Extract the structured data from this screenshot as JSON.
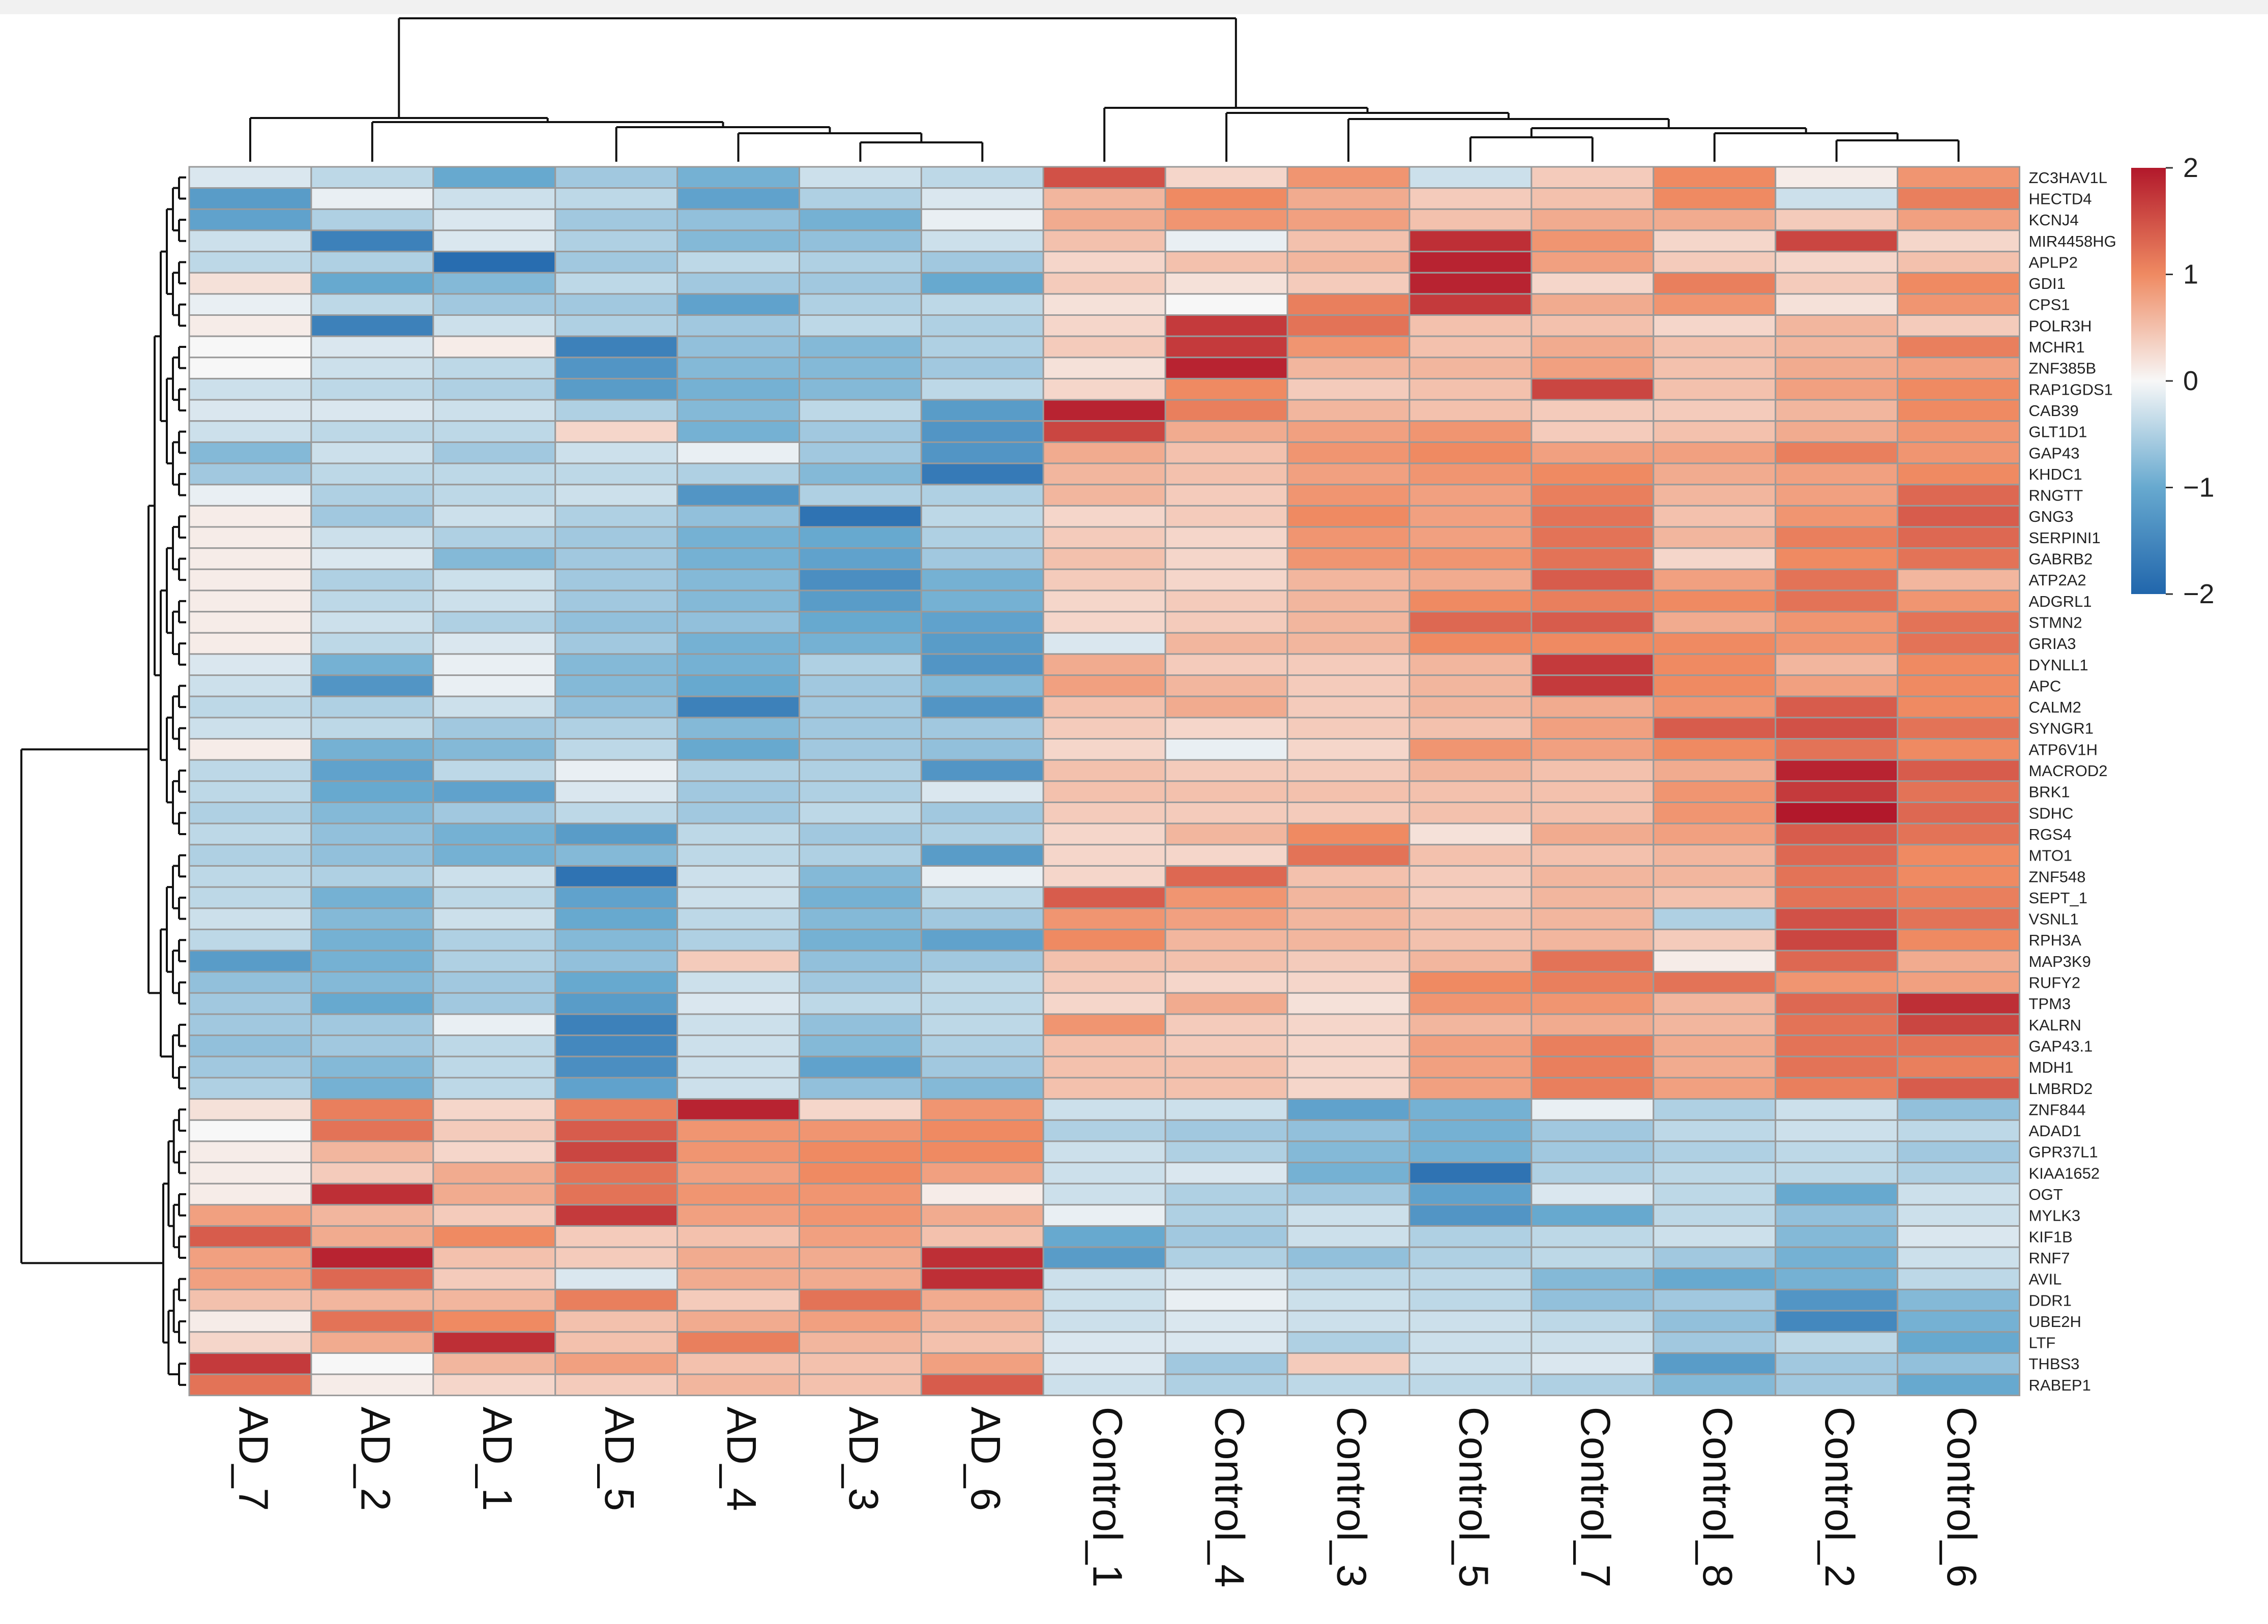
{
  "chart_data": {
    "type": "heatmap",
    "title": "",
    "xlabel": "",
    "ylabel": "",
    "columns": [
      "AD_7",
      "AD_2",
      "AD_1",
      "AD_5",
      "AD_4",
      "AD_3",
      "AD_6",
      "Control_1",
      "Control_4",
      "Control_3",
      "Control_5",
      "Control_7",
      "Control_8",
      "Control_2",
      "Control_6"
    ],
    "rows": [
      "ZC3HAV1L",
      "HECTD4",
      "KCNJ4",
      "MIR4458HG",
      "APLP2",
      "GDI1",
      "CPS1",
      "POLR3H",
      "MCHR1",
      "ZNF385B",
      "RAP1GDS1",
      "CAB39",
      "GLT1D1",
      "GAP43",
      "KHDC1",
      "RNGTT",
      "GNG3",
      "SERPINI1",
      "GABRB2",
      "ATP2A2",
      "ADGRL1",
      "STMN2",
      "GRIA3",
      "DYNLL1",
      "APC",
      "CALM2",
      "SYNGR1",
      "ATP6V1H",
      "MACROD2",
      "BRK1",
      "SDHC",
      "RGS4",
      "MTO1",
      "ZNF548",
      "SEPT_1",
      "VSNL1",
      "RPH3A",
      "MAP3K9",
      "RUFY2",
      "TPM3",
      "KALRN",
      "GAP43.1",
      "MDH1",
      "LMBRD2",
      "ZNF844",
      "ADAD1",
      "GPR37L1",
      "KIAA1652",
      "OGT",
      "MYLK3",
      "KIF1B",
      "RNF7",
      "AVIL",
      "DDR1",
      "UBE2H",
      "LTF",
      "THBS3",
      "RABEP1"
    ],
    "values": [
      [
        -0.2,
        -0.4,
        -1.0,
        -0.6,
        -0.9,
        -0.3,
        -0.4,
        1.5,
        0.3,
        0.9,
        -0.3,
        0.4,
        1.0,
        0.1,
        0.9
      ],
      [
        -1.2,
        -0.1,
        -0.3,
        -0.4,
        -1.1,
        -0.5,
        -0.2,
        0.6,
        1.0,
        0.7,
        0.4,
        0.5,
        1.0,
        -0.3,
        1.1
      ],
      [
        -1.1,
        -0.5,
        -0.2,
        -0.6,
        -0.7,
        -0.9,
        -0.1,
        0.7,
        0.9,
        0.8,
        0.5,
        0.7,
        0.7,
        0.4,
        0.8
      ],
      [
        -0.3,
        -1.6,
        -0.2,
        -0.5,
        -0.8,
        -0.7,
        -0.3,
        0.5,
        -0.1,
        0.5,
        1.8,
        0.9,
        0.3,
        1.6,
        0.3
      ],
      [
        -0.4,
        -0.5,
        -1.9,
        -0.6,
        -0.4,
        -0.5,
        -0.6,
        0.3,
        0.5,
        0.6,
        1.9,
        0.8,
        0.4,
        0.3,
        0.5
      ],
      [
        0.2,
        -1.0,
        -0.8,
        -0.4,
        -0.6,
        -0.6,
        -1.0,
        0.4,
        0.2,
        0.4,
        1.9,
        0.3,
        1.1,
        0.4,
        1.0
      ],
      [
        -0.1,
        -0.4,
        -0.6,
        -0.6,
        -1.1,
        -0.5,
        -0.4,
        0.2,
        0.0,
        1.1,
        1.7,
        0.7,
        0.9,
        0.2,
        0.9
      ],
      [
        0.1,
        -1.6,
        -0.3,
        -0.5,
        -0.6,
        -0.4,
        -0.5,
        0.3,
        1.7,
        1.2,
        0.5,
        0.5,
        0.3,
        0.6,
        0.4
      ],
      [
        0.0,
        -0.2,
        0.1,
        -1.6,
        -0.7,
        -0.8,
        -0.5,
        0.4,
        1.7,
        0.9,
        0.5,
        0.7,
        0.5,
        0.6,
        1.1
      ],
      [
        0.0,
        -0.3,
        -0.4,
        -1.3,
        -0.8,
        -0.8,
        -0.6,
        0.2,
        1.9,
        0.6,
        0.6,
        0.8,
        0.5,
        0.7,
        0.8
      ],
      [
        -0.3,
        -0.4,
        -0.5,
        -1.2,
        -0.9,
        -0.8,
        -0.4,
        0.3,
        1.0,
        0.4,
        0.5,
        1.6,
        0.5,
        0.8,
        1.0
      ],
      [
        -0.2,
        -0.2,
        -0.3,
        -0.5,
        -0.8,
        -0.4,
        -1.2,
        1.9,
        1.1,
        0.6,
        0.5,
        0.4,
        0.4,
        0.6,
        1.0
      ],
      [
        -0.3,
        -0.4,
        -0.4,
        0.3,
        -0.9,
        -0.6,
        -1.3,
        1.6,
        0.7,
        0.8,
        0.9,
        0.4,
        0.5,
        0.7,
        0.9
      ],
      [
        -0.8,
        -0.3,
        -0.6,
        -0.3,
        -0.1,
        -0.6,
        -1.3,
        0.7,
        0.5,
        0.9,
        1.0,
        0.8,
        0.8,
        1.1,
        0.9
      ],
      [
        -0.6,
        -0.4,
        -0.4,
        -0.4,
        -0.5,
        -0.8,
        -1.7,
        0.6,
        0.5,
        0.8,
        0.9,
        1.0,
        0.7,
        0.8,
        1.0
      ],
      [
        -0.1,
        -0.5,
        -0.4,
        -0.3,
        -1.3,
        -0.5,
        -0.5,
        0.6,
        0.4,
        0.9,
        0.8,
        1.1,
        0.6,
        0.8,
        1.3
      ],
      [
        0.1,
        -0.6,
        -0.3,
        -0.5,
        -0.7,
        -1.8,
        -0.4,
        0.3,
        0.4,
        1.0,
        0.8,
        1.2,
        0.5,
        0.9,
        1.4
      ],
      [
        0.1,
        -0.3,
        -0.5,
        -0.6,
        -0.9,
        -1.0,
        -0.5,
        0.4,
        0.3,
        0.9,
        0.8,
        1.2,
        0.6,
        1.1,
        1.3
      ],
      [
        0.1,
        -0.2,
        -0.8,
        -0.6,
        -0.9,
        -1.1,
        -0.6,
        0.5,
        0.3,
        0.9,
        0.9,
        1.2,
        0.3,
        1.0,
        1.2
      ],
      [
        0.1,
        -0.5,
        -0.3,
        -0.6,
        -0.8,
        -1.4,
        -0.9,
        0.4,
        0.3,
        0.6,
        0.7,
        1.4,
        0.8,
        1.2,
        0.6
      ],
      [
        0.1,
        -0.4,
        -0.3,
        -0.6,
        -0.8,
        -1.2,
        -0.9,
        0.3,
        0.4,
        0.6,
        1.0,
        1.1,
        1.0,
        1.2,
        0.9
      ],
      [
        0.1,
        -0.3,
        -0.5,
        -0.7,
        -0.7,
        -1.0,
        -1.1,
        0.3,
        0.4,
        0.6,
        1.3,
        1.4,
        0.7,
        0.9,
        1.2
      ],
      [
        0.1,
        -0.4,
        -0.2,
        -0.6,
        -0.9,
        -0.9,
        -1.2,
        -0.2,
        0.6,
        0.6,
        1.0,
        1.0,
        1.0,
        0.9,
        1.2
      ],
      [
        -0.2,
        -0.9,
        -0.1,
        -0.8,
        -0.9,
        -0.5,
        -1.3,
        0.7,
        0.4,
        0.4,
        0.6,
        1.7,
        1.0,
        0.6,
        1.0
      ],
      [
        -0.3,
        -1.3,
        -0.1,
        -0.8,
        -1.0,
        -0.6,
        -0.8,
        0.8,
        0.6,
        0.4,
        0.6,
        1.7,
        1.0,
        0.8,
        1.0
      ],
      [
        -0.4,
        -0.5,
        -0.3,
        -0.7,
        -1.6,
        -0.6,
        -1.3,
        0.5,
        0.7,
        0.4,
        0.6,
        0.7,
        0.9,
        1.4,
        1.0
      ],
      [
        -0.3,
        -0.4,
        -0.6,
        -0.5,
        -0.8,
        -0.6,
        -0.6,
        0.4,
        0.3,
        0.4,
        0.5,
        0.8,
        1.4,
        1.5,
        1.2
      ],
      [
        0.1,
        -0.9,
        -0.8,
        -0.4,
        -1.0,
        -0.6,
        -0.7,
        0.3,
        -0.1,
        0.3,
        0.9,
        0.8,
        1.0,
        1.2,
        1.0
      ],
      [
        -0.4,
        -1.1,
        -0.4,
        -0.1,
        -0.5,
        -0.5,
        -1.3,
        0.5,
        0.4,
        0.4,
        0.6,
        0.5,
        0.7,
        1.9,
        1.4
      ],
      [
        -0.4,
        -1.0,
        -1.1,
        -0.2,
        -0.6,
        -0.5,
        -0.2,
        0.5,
        0.5,
        0.5,
        0.5,
        0.5,
        0.9,
        1.7,
        1.2
      ],
      [
        -0.5,
        -0.8,
        -0.6,
        -0.4,
        -0.6,
        -0.4,
        -0.6,
        0.4,
        0.4,
        0.4,
        0.5,
        0.5,
        0.9,
        2.0,
        1.3
      ],
      [
        -0.4,
        -0.7,
        -0.9,
        -1.2,
        -0.4,
        -0.6,
        -0.5,
        0.3,
        0.6,
        1.0,
        0.2,
        0.7,
        0.8,
        1.4,
        1.2
      ],
      [
        -0.5,
        -0.7,
        -0.9,
        -0.8,
        -0.4,
        -0.5,
        -1.2,
        0.3,
        0.3,
        1.2,
        0.5,
        0.5,
        0.6,
        1.3,
        1.0
      ],
      [
        -0.4,
        -0.5,
        -0.3,
        -1.8,
        -0.3,
        -0.8,
        -0.1,
        0.3,
        1.3,
        0.5,
        0.4,
        0.6,
        0.6,
        1.2,
        1.0
      ],
      [
        -0.4,
        -0.9,
        -0.4,
        -1.1,
        -0.3,
        -0.9,
        -0.4,
        1.4,
        0.9,
        0.6,
        0.4,
        0.6,
        0.5,
        1.2,
        1.1
      ],
      [
        -0.3,
        -0.8,
        -0.3,
        -1.0,
        -0.4,
        -0.8,
        -0.6,
        0.9,
        0.8,
        0.6,
        0.5,
        0.6,
        -0.5,
        1.5,
        1.2
      ],
      [
        -0.4,
        -0.9,
        -0.5,
        -0.8,
        -0.5,
        -0.9,
        -1.1,
        1.0,
        0.6,
        0.6,
        0.5,
        0.6,
        0.4,
        1.6,
        1.0
      ],
      [
        -1.2,
        -0.9,
        -0.5,
        -0.7,
        0.4,
        -0.7,
        -0.6,
        0.5,
        0.5,
        0.4,
        0.6,
        1.2,
        0.1,
        1.3,
        0.7
      ],
      [
        -0.7,
        -0.8,
        -0.6,
        -1.0,
        -0.3,
        -0.6,
        -0.4,
        0.4,
        0.3,
        0.3,
        1.0,
        1.1,
        1.2,
        0.9,
        0.8
      ],
      [
        -0.6,
        -1.0,
        -0.6,
        -1.2,
        -0.2,
        -0.4,
        -0.4,
        0.3,
        0.7,
        0.2,
        0.9,
        0.9,
        0.6,
        1.3,
        1.8
      ],
      [
        -0.6,
        -0.6,
        -0.1,
        -1.6,
        -0.3,
        -0.7,
        -0.4,
        0.9,
        0.4,
        0.3,
        0.6,
        0.7,
        0.6,
        1.2,
        1.6
      ],
      [
        -0.7,
        -0.6,
        -0.4,
        -1.5,
        -0.3,
        -0.8,
        -0.5,
        0.5,
        0.4,
        0.3,
        0.8,
        1.1,
        0.7,
        1.2,
        1.2
      ],
      [
        -0.6,
        -0.8,
        -0.4,
        -1.4,
        -0.3,
        -1.1,
        -0.6,
        0.5,
        0.5,
        0.3,
        0.8,
        1.1,
        0.7,
        1.2,
        1.1
      ],
      [
        -0.5,
        -0.9,
        -0.4,
        -1.1,
        -0.3,
        -0.7,
        -0.8,
        0.5,
        0.5,
        0.3,
        0.8,
        1.1,
        0.8,
        1.1,
        1.4
      ],
      [
        0.2,
        1.1,
        0.3,
        1.1,
        1.9,
        0.3,
        0.9,
        -0.3,
        -0.3,
        -1.1,
        -0.9,
        -0.1,
        -0.5,
        -0.3,
        -0.7
      ],
      [
        0.0,
        1.2,
        0.4,
        1.4,
        0.9,
        0.9,
        1.0,
        -0.5,
        -0.6,
        -0.7,
        -0.9,
        -0.6,
        -0.4,
        -0.3,
        -0.4
      ],
      [
        0.1,
        0.6,
        0.3,
        1.6,
        0.9,
        1.0,
        1.0,
        -0.3,
        -0.5,
        -0.8,
        -0.9,
        -0.6,
        -0.5,
        -0.4,
        -0.6
      ],
      [
        0.1,
        0.4,
        0.7,
        1.2,
        0.8,
        1.0,
        0.8,
        -0.3,
        -0.2,
        -0.9,
        -1.8,
        -0.5,
        -0.4,
        -0.4,
        -0.5
      ],
      [
        0.1,
        1.8,
        0.7,
        1.2,
        0.9,
        0.9,
        0.1,
        -0.3,
        -0.5,
        -0.6,
        -1.1,
        -0.2,
        -0.4,
        -1.0,
        -0.3
      ],
      [
        0.8,
        0.6,
        0.4,
        1.7,
        0.8,
        0.9,
        0.7,
        -0.1,
        -0.5,
        -0.3,
        -1.3,
        -1.0,
        -0.4,
        -0.7,
        -0.3
      ],
      [
        1.4,
        0.7,
        1.0,
        0.4,
        0.5,
        0.8,
        0.5,
        -1.0,
        -0.6,
        -0.3,
        -0.5,
        -0.4,
        -0.3,
        -0.8,
        -0.2
      ],
      [
        0.8,
        1.9,
        0.5,
        0.4,
        0.7,
        0.7,
        1.8,
        -1.2,
        -0.5,
        -0.7,
        -0.5,
        -0.4,
        -0.6,
        -0.9,
        -0.3
      ],
      [
        0.8,
        1.3,
        0.4,
        -0.2,
        0.7,
        0.7,
        1.8,
        -0.3,
        -0.2,
        -0.4,
        -0.4,
        -0.8,
        -1.0,
        -0.9,
        -0.4
      ],
      [
        0.5,
        0.6,
        0.6,
        1.1,
        0.4,
        1.2,
        0.7,
        -0.3,
        -0.1,
        -0.3,
        -0.4,
        -0.7,
        -0.6,
        -1.3,
        -0.8
      ],
      [
        0.1,
        1.2,
        1.0,
        0.5,
        0.7,
        0.8,
        0.6,
        -0.3,
        -0.2,
        -0.3,
        -0.3,
        -0.4,
        -0.7,
        -1.5,
        -0.9
      ],
      [
        0.3,
        0.7,
        1.8,
        0.5,
        1.1,
        0.6,
        0.5,
        -0.2,
        -0.2,
        -0.5,
        -0.3,
        -0.3,
        -0.6,
        -0.4,
        -1.0
      ],
      [
        1.7,
        0.0,
        0.6,
        0.8,
        0.5,
        0.5,
        0.8,
        -0.2,
        -0.6,
        0.4,
        -0.3,
        -0.2,
        -1.2,
        -0.6,
        -0.7
      ],
      [
        1.2,
        0.1,
        0.3,
        0.4,
        0.6,
        0.5,
        1.4,
        -0.3,
        -0.5,
        -0.4,
        -0.4,
        -0.5,
        -0.8,
        -0.6,
        -1.0
      ]
    ],
    "color_scale": {
      "min": -2,
      "max": 2,
      "low": "#2166ac",
      "mid": "#f7f7f7",
      "high": "#b2182b"
    },
    "legend": {
      "ticks": [
        "2",
        "1",
        "0",
        "−1",
        "−2"
      ],
      "tick_values": [
        2,
        1,
        0,
        -1,
        -2
      ],
      "position": "top-right"
    },
    "column_dendrogram": true,
    "row_dendrogram": true
  }
}
